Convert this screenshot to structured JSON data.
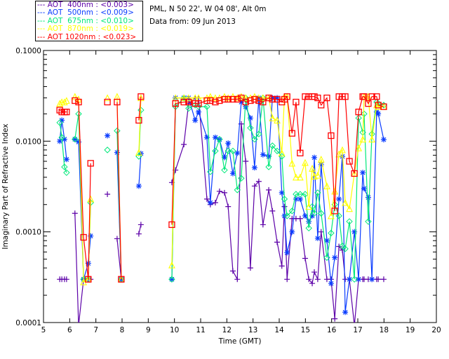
{
  "header": {
    "site": "PML, N 50 22', W 04 08', Alt 0m",
    "date": "Data from: 09 Jun 2013"
  },
  "chart_data": {
    "type": "line",
    "title": "",
    "xlabel": "Time (GMT)",
    "ylabel": "Imaginary Part of Refractive Index",
    "xlim": [
      5,
      20
    ],
    "ylim": [
      0.0001,
      0.1
    ],
    "yscale": "log",
    "xticks": [
      "5",
      "6",
      "7",
      "8",
      "9",
      "10",
      "11",
      "12",
      "13",
      "14",
      "15",
      "16",
      "17",
      "18",
      "19",
      "20"
    ],
    "yticks": [
      "0.1000",
      "0.0100",
      "0.0010",
      "0.0001"
    ],
    "legend_position": "top-left (outside plot)",
    "x": [
      5.62,
      5.7,
      5.8,
      5.88,
      null,
      6.2,
      6.34,
      6.53,
      6.71,
      6.8,
      null,
      7.44,
      null,
      7.81,
      7.97,
      null,
      8.64,
      8.72,
      null,
      9.9,
      10.04,
      10.36,
      10.54,
      10.79,
      10.92,
      11.24,
      11.37,
      11.56,
      11.72,
      11.91,
      12.05,
      12.23,
      12.4,
      12.55,
      12.72,
      12.9,
      13.06,
      13.22,
      13.38,
      13.6,
      13.74,
      13.92,
      14.1,
      14.2,
      14.3,
      14.49,
      14.64,
      14.8,
      14.99,
      15.13,
      15.26,
      15.34,
      15.47,
      15.6,
      15.82,
      15.98,
      16.12,
      16.28,
      16.41,
      16.52,
      16.68,
      16.87,
      17.03,
      17.19,
      17.24,
      17.4,
      17.54,
      17.72,
      17.78,
      17.99
    ],
    "series": [
      {
        "name": "AOT  400nm : <0.003>",
        "color": "#5c00a8",
        "marker": "plus",
        "values": [
          0.0003,
          0.0003,
          0.0003,
          0.0003,
          null,
          0.0016,
          8e-05,
          0.0003,
          0.0003,
          0.0003,
          null,
          0.0026,
          null,
          0.00084,
          0.0003,
          null,
          0.00095,
          0.0012,
          null,
          0.0035,
          0.0048,
          0.0092,
          0.026,
          0.03,
          0.03,
          0.0023,
          0.002,
          0.0021,
          0.0028,
          0.0027,
          0.0019,
          0.00037,
          0.0003,
          0.0155,
          0.006,
          0.0004,
          0.0032,
          0.0036,
          0.0012,
          0.0029,
          0.0017,
          0.00077,
          0.00042,
          0.0019,
          0.0003,
          0.0014,
          0.0014,
          0.0014,
          0.00051,
          0.0003,
          0.00027,
          0.00036,
          0.0003,
          0.001,
          0.0003,
          0.0003,
          0.00011,
          0.00069,
          0.00063,
          0.0003,
          0.0003,
          8e-05,
          0.0003,
          0.0003,
          0.0003,
          0.0003,
          0.0003,
          0.0003,
          0.0003,
          0.0003
        ]
      },
      {
        "name": "AOT  500nm : <0.009>",
        "color": "#0a3cff",
        "marker": "asterisk",
        "values": [
          0.01,
          0.017,
          0.0105,
          0.0063,
          null,
          0.0105,
          0.0098,
          0.0003,
          0.00045,
          0.0009,
          null,
          0.0115,
          null,
          0.0075,
          0.0003,
          null,
          0.0032,
          0.0073,
          null,
          0.0003,
          0.03,
          0.03,
          0.03,
          0.017,
          0.021,
          0.011,
          0.0021,
          0.011,
          0.0104,
          0.0066,
          0.0095,
          0.0044,
          0.0074,
          0.027,
          0.024,
          0.018,
          0.0051,
          0.03,
          0.0071,
          0.0068,
          0.03,
          0.03,
          0.0027,
          0.0015,
          0.00059,
          0.001,
          0.0023,
          0.0023,
          0.0015,
          0.0013,
          0.0015,
          0.0066,
          0.00085,
          0.0055,
          0.0008,
          0.00027,
          0.00052,
          0.0023,
          0.0068,
          0.00013,
          0.0003,
          0.001,
          0.0003,
          0.0045,
          0.003,
          0.0024,
          0.0003,
          0.021,
          0.02,
          0.0104
        ]
      },
      {
        "name": "AOT  675nm : <0.010>",
        "color": "#00e87a",
        "marker": "diamond",
        "values": [
          0.016,
          0.011,
          0.0052,
          0.0045,
          null,
          0.0105,
          0.02,
          0.0003,
          0.0003,
          0.0021,
          null,
          0.008,
          null,
          0.013,
          0.0003,
          null,
          0.0068,
          0.022,
          null,
          0.0003,
          0.024,
          0.03,
          0.023,
          0.025,
          0.024,
          0.024,
          0.0046,
          0.0078,
          0.0105,
          0.0048,
          0.0078,
          0.0078,
          0.0029,
          0.0039,
          0.03,
          0.014,
          0.0105,
          0.012,
          0.03,
          0.0052,
          0.0089,
          0.0078,
          0.0068,
          0.0023,
          0.0015,
          0.0017,
          0.0026,
          0.0026,
          0.0026,
          0.0011,
          0.0019,
          0.0016,
          0.0027,
          0.0016,
          0.00052,
          0.00097,
          0.002,
          0.0015,
          0.0007,
          0.00065,
          0.0013,
          0.0003,
          0.018,
          0.0125,
          0.02,
          0.0013,
          0.012,
          0.027,
          0.026,
          0.025
        ]
      },
      {
        "name": "AOT  870nm : <0.019>",
        "color": "#ffff00",
        "marker": "triangle",
        "values": [
          0.026,
          0.027,
          0.027,
          0.028,
          null,
          0.031,
          0.029,
          0.00028,
          0.0003,
          0.0023,
          null,
          0.03,
          null,
          0.031,
          0.0003,
          null,
          0.0075,
          0.03,
          null,
          0.00043,
          0.03,
          0.03,
          0.03,
          0.03,
          0.03,
          0.03,
          0.031,
          0.03,
          0.03,
          0.031,
          0.03,
          0.031,
          0.03,
          0.031,
          0.03,
          0.03,
          0.031,
          0.03,
          0.03,
          0.03,
          0.018,
          0.017,
          0.0074,
          0.031,
          0.031,
          0.0057,
          0.004,
          0.004,
          0.0058,
          0.0019,
          0.005,
          0.0041,
          0.0042,
          0.0063,
          0.0032,
          0.0015,
          0.0028,
          0.0072,
          0.008,
          0.0021,
          0.0018,
          0.0044,
          0.0084,
          0.0105,
          0.031,
          0.031,
          0.0105,
          0.025,
          0.024,
          0.024
        ]
      },
      {
        "name": "AOT 1020nm : <0.023>",
        "color": "#ff0000",
        "marker": "square",
        "values": [
          0.022,
          0.021,
          0.021,
          0.021,
          null,
          0.028,
          0.027,
          0.00087,
          0.0003,
          0.0057,
          null,
          0.027,
          null,
          0.027,
          0.0003,
          null,
          0.017,
          0.031,
          null,
          0.0012,
          0.026,
          0.027,
          0.027,
          0.026,
          0.026,
          0.028,
          0.028,
          0.027,
          0.028,
          0.029,
          0.029,
          0.029,
          0.029,
          0.03,
          0.027,
          0.028,
          0.029,
          0.028,
          0.027,
          0.03,
          0.029,
          0.029,
          0.027,
          0.029,
          0.031,
          0.0122,
          0.027,
          0.0074,
          0.031,
          0.031,
          0.031,
          0.031,
          0.03,
          0.025,
          0.03,
          0.0115,
          0.0017,
          0.031,
          0.031,
          0.031,
          0.006,
          0.0044,
          0.021,
          0.031,
          0.031,
          0.026,
          0.031,
          0.031,
          0.025,
          0.024
        ]
      }
    ]
  }
}
